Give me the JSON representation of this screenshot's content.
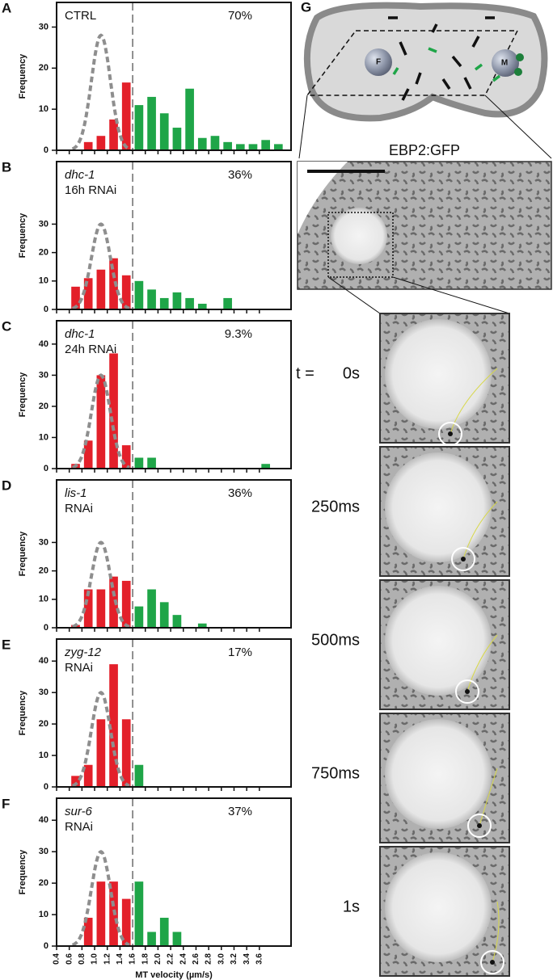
{
  "chart_data": [
    {
      "type": "histogram",
      "panel": "A",
      "condition": "CTRL",
      "percent": "70%",
      "ylabel": "Frequency",
      "bins": [
        0.6,
        0.8,
        1.0,
        1.2,
        1.4,
        1.6,
        1.8,
        2.0,
        2.2,
        2.4,
        2.6,
        2.8,
        3.0,
        3.2,
        3.4,
        3.6,
        3.8,
        4.0
      ],
      "values": [
        0,
        2,
        3.5,
        7.5,
        16.5,
        11,
        13,
        9,
        5.5,
        15,
        3,
        3.5,
        2,
        1.5,
        1.5,
        2.5,
        1.5
      ],
      "ylim": [
        0,
        36
      ],
      "yticks": [
        0,
        10,
        20,
        30
      ],
      "xlim": [
        0.4,
        4.1
      ],
      "threshold": 1.6,
      "fit": {
        "mean": 1.1,
        "sd": 0.15,
        "peak": 28
      }
    },
    {
      "type": "histogram",
      "panel": "B",
      "gene": "dhc-1",
      "condition": "16h RNAi",
      "percent": "36%",
      "ylabel": "Frequency",
      "bins": [
        0.6,
        0.8,
        1.0,
        1.2,
        1.4,
        1.6,
        1.8,
        2.0,
        2.2,
        2.4,
        2.6,
        2.8,
        3.0,
        3.2,
        3.4,
        3.6,
        3.8,
        4.0
      ],
      "values": [
        8,
        11,
        14,
        18,
        12,
        10,
        7,
        4,
        6,
        4,
        2,
        0,
        4,
        0,
        0,
        0,
        0
      ],
      "ylim": [
        0,
        52
      ],
      "yticks": [
        0,
        10,
        20,
        30
      ],
      "xlim": [
        0.4,
        4.1
      ],
      "threshold": 1.6,
      "fit": {
        "mean": 1.1,
        "sd": 0.15,
        "peak": 30
      }
    },
    {
      "type": "histogram",
      "panel": "C",
      "gene": "dhc-1",
      "condition": "24h RNAi",
      "percent": "9.3%",
      "ylabel": "Frequency",
      "bins": [
        0.6,
        0.8,
        1.0,
        1.2,
        1.4,
        1.6,
        1.8,
        2.0,
        2.2,
        2.4,
        2.6,
        2.8,
        3.0,
        3.2,
        3.4,
        3.6,
        3.8,
        4.0
      ],
      "values": [
        1.5,
        9,
        30,
        37,
        7.5,
        3.5,
        3.5,
        0,
        0,
        0,
        0,
        0,
        0,
        0,
        0,
        1.5,
        0
      ],
      "ylim": [
        0,
        47.5
      ],
      "yticks": [
        0,
        10,
        20,
        30,
        40
      ],
      "xlim": [
        0.4,
        4.1
      ],
      "threshold": 1.6,
      "fit": {
        "mean": 1.1,
        "sd": 0.15,
        "peak": 30
      }
    },
    {
      "type": "histogram",
      "panel": "D",
      "gene": "lis-1",
      "condition": "RNAi",
      "percent": "36%",
      "ylabel": "Frequency",
      "bins": [
        0.6,
        0.8,
        1.0,
        1.2,
        1.4,
        1.6,
        1.8,
        2.0,
        2.2,
        2.4,
        2.6,
        2.8,
        3.0,
        3.2,
        3.4,
        3.6,
        3.8,
        4.0
      ],
      "values": [
        1,
        13.5,
        13.5,
        18,
        16.5,
        7.5,
        13.5,
        9,
        4.5,
        0,
        1.5,
        0,
        0,
        0,
        0,
        0,
        0
      ],
      "ylim": [
        0,
        52
      ],
      "yticks": [
        0,
        10,
        20,
        30
      ],
      "xlim": [
        0.4,
        4.1
      ],
      "threshold": 1.6,
      "fit": {
        "mean": 1.1,
        "sd": 0.15,
        "peak": 30
      }
    },
    {
      "type": "histogram",
      "panel": "E",
      "gene": "zyg-12",
      "condition": "RNAi",
      "percent": "17%",
      "ylabel": "Frequency",
      "bins": [
        0.6,
        0.8,
        1.0,
        1.2,
        1.4,
        1.6,
        1.8,
        2.0,
        2.2,
        2.4,
        2.6,
        2.8,
        3.0,
        3.2,
        3.4,
        3.6,
        3.8,
        4.0
      ],
      "values": [
        3.5,
        7,
        21.5,
        39,
        21.5,
        7,
        0,
        0,
        0,
        0,
        0,
        0,
        0,
        0,
        0,
        0,
        0
      ],
      "ylim": [
        0,
        47
      ],
      "yticks": [
        0,
        10,
        20,
        30,
        40
      ],
      "xlim": [
        0.4,
        4.1
      ],
      "threshold": 1.6,
      "fit": {
        "mean": 1.1,
        "sd": 0.15,
        "peak": 30
      }
    },
    {
      "type": "histogram",
      "panel": "F",
      "gene": "sur-6",
      "condition": "RNAi",
      "percent": "37%",
      "ylabel": "Frequency",
      "xlabel": "MT velocity (µm/s)",
      "bins": [
        0.6,
        0.8,
        1.0,
        1.2,
        1.4,
        1.6,
        1.8,
        2.0,
        2.2,
        2.4,
        2.6,
        2.8,
        3.0,
        3.2,
        3.4,
        3.6,
        3.8,
        4.0
      ],
      "values": [
        0,
        9,
        20.5,
        20.5,
        15,
        20.5,
        4.5,
        9,
        4.5,
        0,
        0,
        0,
        0,
        0,
        0,
        0,
        0
      ],
      "ylim": [
        0,
        47
      ],
      "yticks": [
        0,
        10,
        20,
        30,
        40
      ],
      "xlim": [
        0.4,
        4.1
      ],
      "threshold": 1.6,
      "xticks": [
        0.4,
        0.6,
        0.8,
        {
          "value": 1,
          "label": "1.0"
        },
        1.2,
        1.4,
        1.6,
        1.8,
        {
          "value": 2,
          "label": "2.0"
        },
        2.2,
        2.4,
        2.6,
        2.8,
        {
          "value": 3,
          "label": "3.0"
        },
        3.2,
        3.4,
        3.6
      ],
      "fit": {
        "mean": 1.1,
        "sd": 0.15,
        "peak": 30
      }
    }
  ],
  "style": {
    "color_below_threshold": "#e3202a",
    "color_above_threshold": "#1fa548",
    "fit_color": "#8e8e8e"
  },
  "panel_g": {
    "panel": "G",
    "nuclei": [
      "F",
      "M"
    ],
    "marker": "EBP2:GFP",
    "time_prefix": "t =",
    "times": [
      "0s",
      "250ms",
      "500ms",
      "750ms",
      "1s"
    ]
  }
}
